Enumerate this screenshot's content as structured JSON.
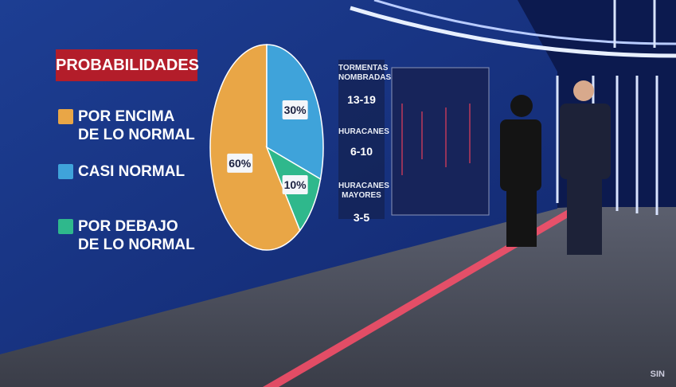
{
  "chart_data": {
    "type": "pie",
    "title": "PROBABILIDADES",
    "categories": [
      "POR ENCIMA DE LO NORMAL",
      "CASI NORMAL",
      "POR DEBAJO DE LO NORMAL"
    ],
    "values": [
      60,
      30,
      10
    ],
    "value_labels": [
      "60%",
      "30%",
      "10%"
    ],
    "colors": [
      "#e9a646",
      "#3fa3da",
      "#2fb88c"
    ]
  },
  "stats": [
    {
      "label": "TORMENTAS NOMBRADAS",
      "value": "13-19"
    },
    {
      "label": "HURACANES",
      "value": "6-10"
    },
    {
      "label": "HURACANES MAYORES",
      "value": "3-5"
    }
  ],
  "logo": "SIN"
}
